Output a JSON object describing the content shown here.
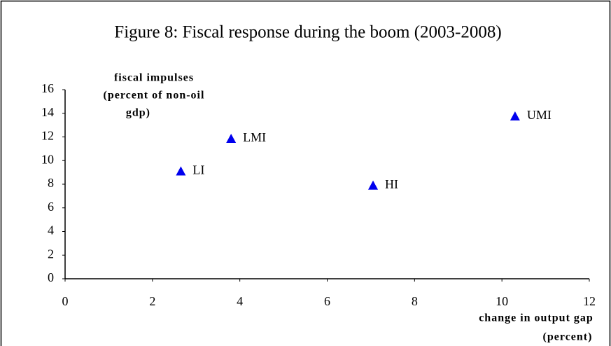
{
  "chart_data": {
    "type": "scatter",
    "title": "Figure 8: Fiscal response during the boom (2003-2008)",
    "ylabel": [
      "fiscal impulses",
      "(percent of non-oil",
      "gdp)"
    ],
    "xlabel": [
      "change in output gap",
      "(percent)"
    ],
    "series": [
      {
        "color": "#0000ee",
        "x": [
          2.65,
          3.8,
          7.05,
          10.3
        ],
        "values": [
          9.1,
          11.85,
          7.9,
          13.75
        ],
        "labels": [
          "LI",
          "LMI",
          "HI",
          "UMI"
        ]
      }
    ],
    "xlim": [
      0,
      12
    ],
    "xticks": [
      0,
      2,
      4,
      6,
      8,
      10,
      12
    ],
    "ylim": [
      0,
      16
    ],
    "yticks": [
      0,
      2,
      4,
      6,
      8,
      10,
      12,
      14,
      16
    ],
    "grid": false
  }
}
